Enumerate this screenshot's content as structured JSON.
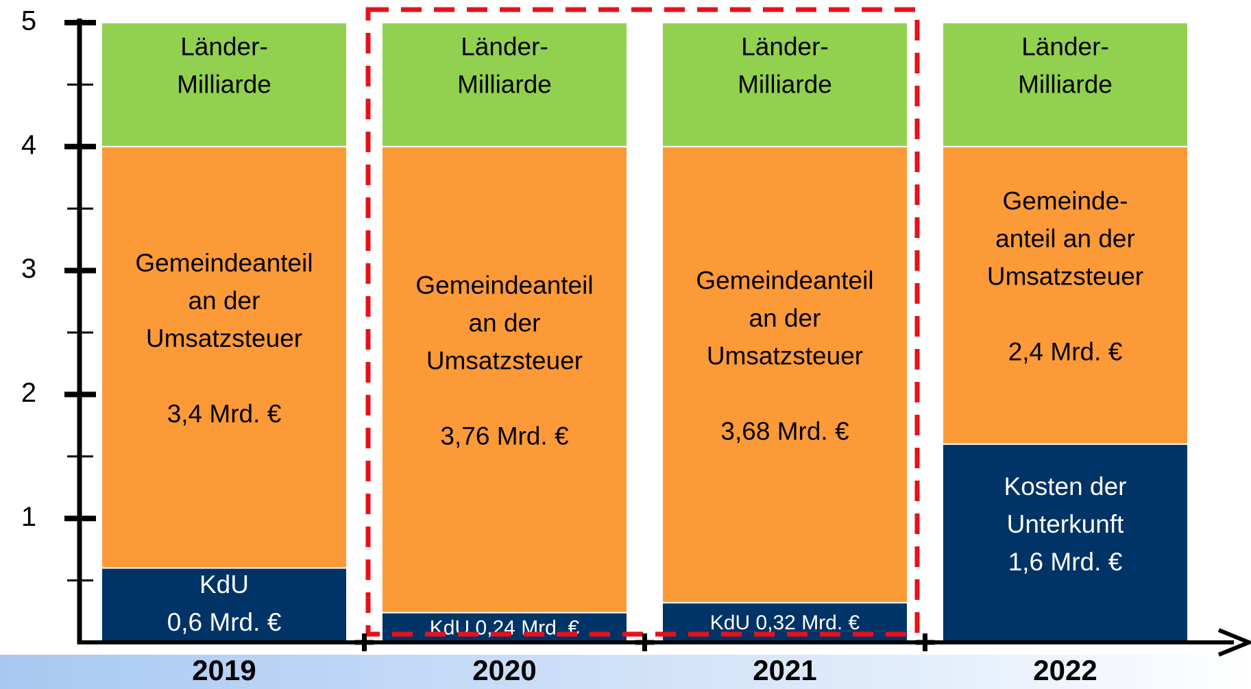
{
  "chart_data": {
    "type": "stacked_bar",
    "categories": [
      "2019",
      "2020",
      "2021",
      "2022"
    ],
    "ylim": [
      0,
      5
    ],
    "yticks": [
      1,
      2,
      3,
      4,
      5
    ],
    "yminorticks": [
      0.5,
      1.5,
      2.5,
      3.5,
      4.5
    ],
    "highlight_categories": [
      "2020",
      "2021"
    ],
    "highlight_color": "#e8101a",
    "series": [
      {
        "color": "#003366",
        "values": [
          0.6,
          0.24,
          0.32,
          1.6
        ],
        "value_labels": [
          "0,6 Mrd. €",
          "0,24 Mrd. €",
          "0,32 Mrd. €",
          "1,6 Mrd. €"
        ],
        "texts": [
          [
            "KdU"
          ],
          [
            "KdU"
          ],
          [
            "KdU"
          ],
          [
            "Kosten der",
            "Unterkunft"
          ]
        ],
        "inline": [
          false,
          true,
          true,
          false
        ]
      },
      {
        "color": "#fd9a38",
        "values": [
          3.4,
          3.76,
          3.68,
          2.4
        ],
        "value_labels": [
          "3,4 Mrd. €",
          "3,76 Mrd. €",
          "3,68 Mrd. €",
          "2,4 Mrd. €"
        ],
        "texts": [
          [
            "Gemeindeanteil",
            "an der",
            "Umsatzsteuer"
          ],
          [
            "Gemeindeanteil",
            "an der",
            "Umsatzsteuer"
          ],
          [
            "Gemeindeanteil",
            "an der",
            "Umsatzsteuer"
          ],
          [
            "Gemeinde-",
            "anteil an der",
            "Umsatzsteuer"
          ]
        ],
        "value_gap": true
      },
      {
        "color": "#92d050",
        "values": [
          1,
          1,
          1,
          1
        ],
        "texts": [
          [
            "Länder-",
            "Milliarde"
          ],
          [
            "Länder-",
            "Milliarde"
          ],
          [
            "Länder-",
            "Milliarde"
          ],
          [
            "Länder-",
            "Milliarde"
          ]
        ]
      }
    ]
  }
}
